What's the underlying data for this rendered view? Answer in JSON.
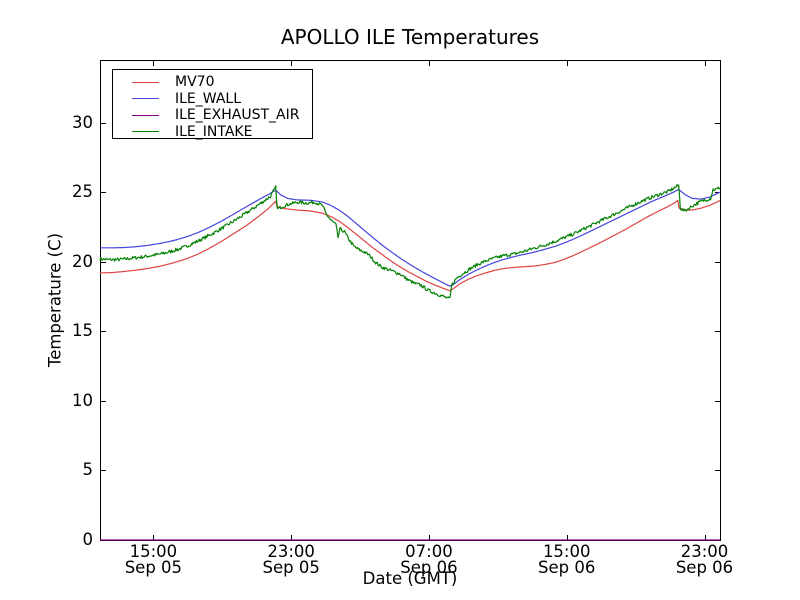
{
  "figure": {
    "background": "#ffffff",
    "axis_color": "#000000"
  },
  "chart_data": {
    "type": "line",
    "title": "APOLLO ILE Temperatures",
    "xlabel": "Date (GMT)",
    "ylabel": "Temperature (C)",
    "x_unit": "hours from left edge (left edge is approx 12:00 Sep 05 GMT)",
    "xlim": [
      0,
      36
    ],
    "ylim": [
      0,
      34.5
    ],
    "grid": false,
    "legend_position": "upper left",
    "yticks": [
      {
        "v": 0,
        "label": "0"
      },
      {
        "v": 5,
        "label": "5"
      },
      {
        "v": 10,
        "label": "10"
      },
      {
        "v": 15,
        "label": "15"
      },
      {
        "v": 20,
        "label": "20"
      },
      {
        "v": 25,
        "label": "25"
      },
      {
        "v": 30,
        "label": "30"
      }
    ],
    "xticks": [
      {
        "t": 3.1,
        "time": "15:00",
        "date": "Sep 05"
      },
      {
        "t": 11.1,
        "time": "23:00",
        "date": "Sep 05"
      },
      {
        "t": 19.1,
        "time": "07:00",
        "date": "Sep 06"
      },
      {
        "t": 27.1,
        "time": "15:00",
        "date": "Sep 06"
      },
      {
        "t": 35.1,
        "time": "23:00",
        "date": "Sep 06"
      }
    ],
    "series": [
      {
        "name": "MV70",
        "color": "#dd4444",
        "noise": 0,
        "points": [
          [
            0,
            19.2
          ],
          [
            0.7,
            19.22
          ],
          [
            1.4,
            19.3
          ],
          [
            2.1,
            19.4
          ],
          [
            2.8,
            19.52
          ],
          [
            3.5,
            19.68
          ],
          [
            4.2,
            19.9
          ],
          [
            5,
            20.2
          ],
          [
            5.7,
            20.55
          ],
          [
            6.4,
            21.0
          ],
          [
            7.1,
            21.5
          ],
          [
            7.8,
            22.05
          ],
          [
            8.5,
            22.6
          ],
          [
            9.2,
            23.25
          ],
          [
            9.8,
            23.85
          ],
          [
            10.2,
            24.35
          ],
          [
            10.28,
            23.95
          ],
          [
            10.7,
            23.82
          ],
          [
            11.4,
            23.72
          ],
          [
            12.2,
            23.65
          ],
          [
            12.9,
            23.5
          ],
          [
            13.4,
            23.25
          ],
          [
            13.9,
            22.9
          ],
          [
            14.4,
            22.45
          ],
          [
            14.9,
            21.95
          ],
          [
            15.4,
            21.45
          ],
          [
            15.9,
            20.95
          ],
          [
            16.4,
            20.5
          ],
          [
            16.9,
            20.05
          ],
          [
            17.4,
            19.65
          ],
          [
            17.9,
            19.28
          ],
          [
            18.4,
            18.95
          ],
          [
            18.9,
            18.62
          ],
          [
            19.4,
            18.35
          ],
          [
            19.9,
            18.1
          ],
          [
            20.3,
            17.92
          ],
          [
            20.45,
            18.0
          ],
          [
            20.9,
            18.42
          ],
          [
            21.4,
            18.75
          ],
          [
            21.9,
            19.0
          ],
          [
            22.4,
            19.2
          ],
          [
            22.9,
            19.38
          ],
          [
            23.4,
            19.5
          ],
          [
            23.9,
            19.58
          ],
          [
            24.4,
            19.62
          ],
          [
            24.9,
            19.66
          ],
          [
            25.4,
            19.72
          ],
          [
            25.9,
            19.82
          ],
          [
            26.4,
            19.95
          ],
          [
            26.9,
            20.15
          ],
          [
            27.4,
            20.4
          ],
          [
            27.9,
            20.68
          ],
          [
            28.4,
            20.98
          ],
          [
            28.9,
            21.28
          ],
          [
            29.4,
            21.6
          ],
          [
            29.9,
            21.92
          ],
          [
            30.4,
            22.25
          ],
          [
            30.9,
            22.6
          ],
          [
            31.4,
            22.95
          ],
          [
            31.9,
            23.3
          ],
          [
            32.4,
            23.62
          ],
          [
            32.9,
            23.92
          ],
          [
            33.3,
            24.18
          ],
          [
            33.55,
            24.4
          ],
          [
            33.63,
            23.85
          ],
          [
            34,
            23.72
          ],
          [
            34.4,
            23.72
          ],
          [
            34.9,
            23.85
          ],
          [
            35.4,
            24.05
          ],
          [
            36,
            24.4
          ]
        ]
      },
      {
        "name": "ILE_WALL",
        "color": "#4444dd",
        "noise": 0,
        "points": [
          [
            0,
            21.0
          ],
          [
            0.7,
            21.0
          ],
          [
            1.4,
            21.02
          ],
          [
            2.1,
            21.08
          ],
          [
            2.8,
            21.18
          ],
          [
            3.5,
            21.32
          ],
          [
            4.2,
            21.5
          ],
          [
            5,
            21.78
          ],
          [
            5.7,
            22.1
          ],
          [
            6.4,
            22.5
          ],
          [
            7.1,
            22.95
          ],
          [
            7.8,
            23.45
          ],
          [
            8.5,
            23.95
          ],
          [
            9.2,
            24.45
          ],
          [
            9.8,
            24.85
          ],
          [
            10.2,
            25.15
          ],
          [
            10.5,
            24.8
          ],
          [
            10.9,
            24.55
          ],
          [
            11.4,
            24.45
          ],
          [
            12.2,
            24.42
          ],
          [
            12.9,
            24.3
          ],
          [
            13.4,
            24.05
          ],
          [
            13.9,
            23.7
          ],
          [
            14.4,
            23.25
          ],
          [
            14.9,
            22.72
          ],
          [
            15.4,
            22.2
          ],
          [
            15.9,
            21.68
          ],
          [
            16.4,
            21.18
          ],
          [
            16.9,
            20.72
          ],
          [
            17.4,
            20.28
          ],
          [
            17.9,
            19.88
          ],
          [
            18.4,
            19.5
          ],
          [
            18.9,
            19.15
          ],
          [
            19.4,
            18.82
          ],
          [
            19.9,
            18.5
          ],
          [
            20.3,
            18.25
          ],
          [
            20.5,
            18.35
          ],
          [
            20.9,
            18.72
          ],
          [
            21.4,
            19.1
          ],
          [
            21.9,
            19.42
          ],
          [
            22.4,
            19.7
          ],
          [
            22.9,
            19.95
          ],
          [
            23.4,
            20.15
          ],
          [
            23.9,
            20.32
          ],
          [
            24.4,
            20.47
          ],
          [
            24.9,
            20.6
          ],
          [
            25.4,
            20.75
          ],
          [
            25.9,
            20.92
          ],
          [
            26.4,
            21.1
          ],
          [
            26.9,
            21.32
          ],
          [
            27.4,
            21.58
          ],
          [
            27.9,
            21.85
          ],
          [
            28.4,
            22.15
          ],
          [
            28.9,
            22.45
          ],
          [
            29.4,
            22.75
          ],
          [
            29.9,
            23.05
          ],
          [
            30.4,
            23.35
          ],
          [
            30.9,
            23.65
          ],
          [
            31.4,
            23.95
          ],
          [
            31.9,
            24.25
          ],
          [
            32.4,
            24.52
          ],
          [
            32.9,
            24.78
          ],
          [
            33.3,
            25.0
          ],
          [
            33.6,
            25.2
          ],
          [
            34,
            24.8
          ],
          [
            34.4,
            24.55
          ],
          [
            34.9,
            24.5
          ],
          [
            35.4,
            24.65
          ],
          [
            36,
            25.0
          ]
        ]
      },
      {
        "name": "ILE_EXHAUST_AIR",
        "color": "#800080",
        "noise": 0,
        "points": [
          [
            0,
            0
          ],
          [
            36,
            0
          ]
        ]
      },
      {
        "name": "ILE_INTAKE",
        "color": "#008000",
        "noise": 0.12,
        "points": [
          [
            0,
            20.2
          ],
          [
            0.5,
            20.15
          ],
          [
            1,
            20.15
          ],
          [
            1.5,
            20.2
          ],
          [
            2,
            20.28
          ],
          [
            2.5,
            20.35
          ],
          [
            3,
            20.45
          ],
          [
            3.5,
            20.55
          ],
          [
            4,
            20.7
          ],
          [
            4.5,
            20.88
          ],
          [
            5,
            21.1
          ],
          [
            5.5,
            21.38
          ],
          [
            6,
            21.68
          ],
          [
            6.5,
            22.0
          ],
          [
            7,
            22.35
          ],
          [
            7.5,
            22.72
          ],
          [
            8,
            23.1
          ],
          [
            8.5,
            23.5
          ],
          [
            9,
            23.92
          ],
          [
            9.5,
            24.35
          ],
          [
            9.9,
            24.7
          ],
          [
            10.2,
            25.35
          ],
          [
            10.3,
            23.78
          ],
          [
            10.6,
            23.98
          ],
          [
            11,
            24.15
          ],
          [
            11.5,
            24.28
          ],
          [
            12,
            24.22
          ],
          [
            12.5,
            24.28
          ],
          [
            12.9,
            24.05
          ],
          [
            13.15,
            23.4
          ],
          [
            13.4,
            23.0
          ],
          [
            13.7,
            22.65
          ],
          [
            13.82,
            21.75
          ],
          [
            13.94,
            22.35
          ],
          [
            14.2,
            22.15
          ],
          [
            14.45,
            21.6
          ],
          [
            14.75,
            21.1
          ],
          [
            15.05,
            20.85
          ],
          [
            15.35,
            20.7
          ],
          [
            15.65,
            20.45
          ],
          [
            16,
            19.95
          ],
          [
            16.35,
            19.62
          ],
          [
            16.7,
            19.45
          ],
          [
            17.05,
            19.3
          ],
          [
            17.45,
            19.1
          ],
          [
            17.85,
            18.72
          ],
          [
            18.25,
            18.45
          ],
          [
            18.65,
            18.3
          ],
          [
            19.05,
            17.95
          ],
          [
            19.45,
            17.75
          ],
          [
            19.85,
            17.55
          ],
          [
            20.1,
            17.42
          ],
          [
            20.32,
            17.32
          ],
          [
            20.42,
            18.3
          ],
          [
            20.7,
            18.82
          ],
          [
            21,
            19.1
          ],
          [
            21.5,
            19.5
          ],
          [
            22,
            19.85
          ],
          [
            22.5,
            20.1
          ],
          [
            23,
            20.3
          ],
          [
            23.5,
            20.45
          ],
          [
            24,
            20.55
          ],
          [
            24.5,
            20.7
          ],
          [
            25,
            20.9
          ],
          [
            25.5,
            21.08
          ],
          [
            26,
            21.28
          ],
          [
            26.5,
            21.5
          ],
          [
            27,
            21.75
          ],
          [
            27.5,
            22.0
          ],
          [
            28,
            22.3
          ],
          [
            28.5,
            22.6
          ],
          [
            29,
            22.9
          ],
          [
            29.5,
            23.2
          ],
          [
            30,
            23.5
          ],
          [
            30.5,
            23.8
          ],
          [
            31,
            24.1
          ],
          [
            31.5,
            24.38
          ],
          [
            32,
            24.62
          ],
          [
            32.5,
            24.85
          ],
          [
            33,
            25.05
          ],
          [
            33.6,
            25.5
          ],
          [
            33.7,
            23.85
          ],
          [
            33.95,
            23.65
          ],
          [
            34.15,
            23.8
          ],
          [
            34.45,
            24.05
          ],
          [
            34.75,
            24.25
          ],
          [
            35.05,
            24.4
          ],
          [
            35.45,
            24.55
          ],
          [
            35.6,
            25.2
          ],
          [
            35.8,
            25.2
          ],
          [
            36,
            25.35
          ]
        ]
      }
    ]
  }
}
